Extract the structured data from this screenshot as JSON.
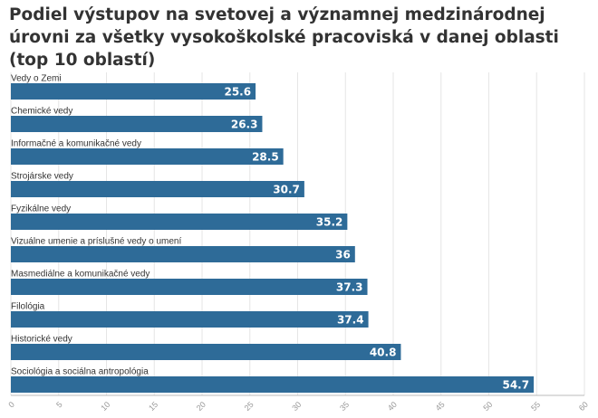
{
  "chart_data": {
    "type": "bar",
    "orientation": "horizontal",
    "title": "Podiel výstupov na svetovej a významnej medzinárodnej úrovni za všetky vysokoškolské pracoviská v danej oblasti (top 10 oblastí)",
    "categories": [
      "Vedy o Zemi",
      "Chemické vedy",
      "Informačné a komunikačné vedy",
      "Strojárske vedy",
      "Fyzikálne vedy",
      "Vizuálne umenie a príslušné vedy o umení",
      "Masmediálne a komunikačné vedy",
      "Filológia",
      "Historické vedy",
      "Sociológia a sociálna antropológia"
    ],
    "values": [
      25.6,
      26.3,
      28.5,
      30.7,
      35.2,
      36,
      37.3,
      37.4,
      40.8,
      54.7
    ],
    "value_labels": [
      "25.6",
      "26.3",
      "28.5",
      "30.7",
      "35.2",
      "36",
      "37.3",
      "37.4",
      "40.8",
      "54.7"
    ],
    "xlim": [
      0,
      60
    ],
    "xticks": [
      "0",
      "5",
      "10",
      "15",
      "20",
      "25",
      "30",
      "35",
      "40",
      "45",
      "50",
      "55",
      "60"
    ],
    "grid": true,
    "bar_color": "#2e6b98"
  }
}
